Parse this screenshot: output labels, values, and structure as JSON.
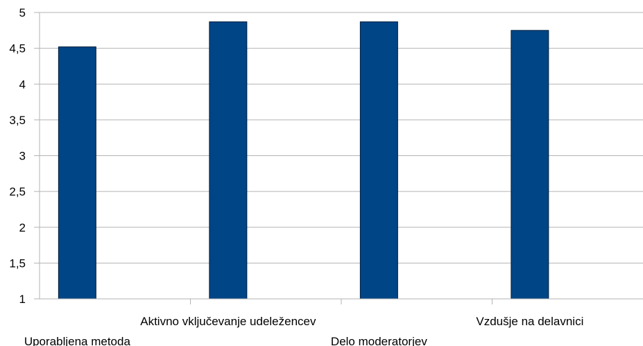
{
  "chart_data": {
    "type": "bar",
    "categories": [
      "Uporabljena metoda",
      "Aktivno vključevanje udeležencev",
      "Delo moderatorjev",
      "Vzdušje na delavnici"
    ],
    "values": [
      4.52,
      4.87,
      4.87,
      4.75
    ],
    "ylim": [
      1,
      5
    ],
    "yticks": [
      "1",
      "1,5",
      "2",
      "2,5",
      "3",
      "3,5",
      "4",
      "4,5",
      "5"
    ],
    "ytick_values": [
      1,
      1.5,
      2,
      2.5,
      3,
      3.5,
      4,
      4.5,
      5
    ],
    "title": "",
    "xlabel": "",
    "ylabel": "",
    "grid": true,
    "legend": "none",
    "bar_color": "#004586",
    "grid_color": "#b3b3b3"
  }
}
